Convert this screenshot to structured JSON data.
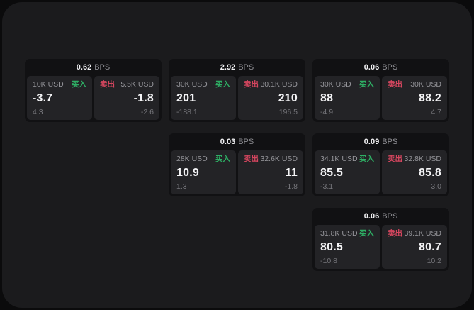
{
  "labels": {
    "bps_unit": "BPS",
    "buy": "买入",
    "sell": "卖出"
  },
  "colors": {
    "buy_green": "#2eae64",
    "sell_red": "#d6465f",
    "panel_bg": "#1b1b1d",
    "card_bg": "#111113",
    "subpanel_bg": "#232326",
    "page_bg": "#0b0b0c"
  },
  "cards": [
    {
      "row": 1,
      "col": 1,
      "bps": "0.62",
      "buy": {
        "amount": "10K USD",
        "value": "-3.7",
        "delta": "4.3"
      },
      "sell": {
        "amount": "5.5K USD",
        "value": "-1.8",
        "delta": "-2.6"
      }
    },
    {
      "row": 1,
      "col": 2,
      "bps": "2.92",
      "buy": {
        "amount": "30K USD",
        "value": "201",
        "delta": "-188.1"
      },
      "sell": {
        "amount": "30.1K USD",
        "value": "210",
        "delta": "196.5"
      }
    },
    {
      "row": 1,
      "col": 3,
      "bps": "0.06",
      "buy": {
        "amount": "30K USD",
        "value": "88",
        "delta": "-4.9"
      },
      "sell": {
        "amount": "30K USD",
        "value": "88.2",
        "delta": "4.7"
      }
    },
    {
      "row": 2,
      "col": 2,
      "bps": "0.03",
      "buy": {
        "amount": "28K USD",
        "value": "10.9",
        "delta": "1.3"
      },
      "sell": {
        "amount": "32.6K USD",
        "value": "11",
        "delta": "-1.8"
      }
    },
    {
      "row": 2,
      "col": 3,
      "bps": "0.09",
      "buy": {
        "amount": "34.1K USD",
        "value": "85.5",
        "delta": "-3.1"
      },
      "sell": {
        "amount": "32.8K USD",
        "value": "85.8",
        "delta": "3.0"
      }
    },
    {
      "row": 3,
      "col": 3,
      "bps": "0.06",
      "buy": {
        "amount": "31.8K USD",
        "value": "80.5",
        "delta": "-10.8"
      },
      "sell": {
        "amount": "39.1K USD",
        "value": "80.7",
        "delta": "10.2"
      }
    }
  ]
}
